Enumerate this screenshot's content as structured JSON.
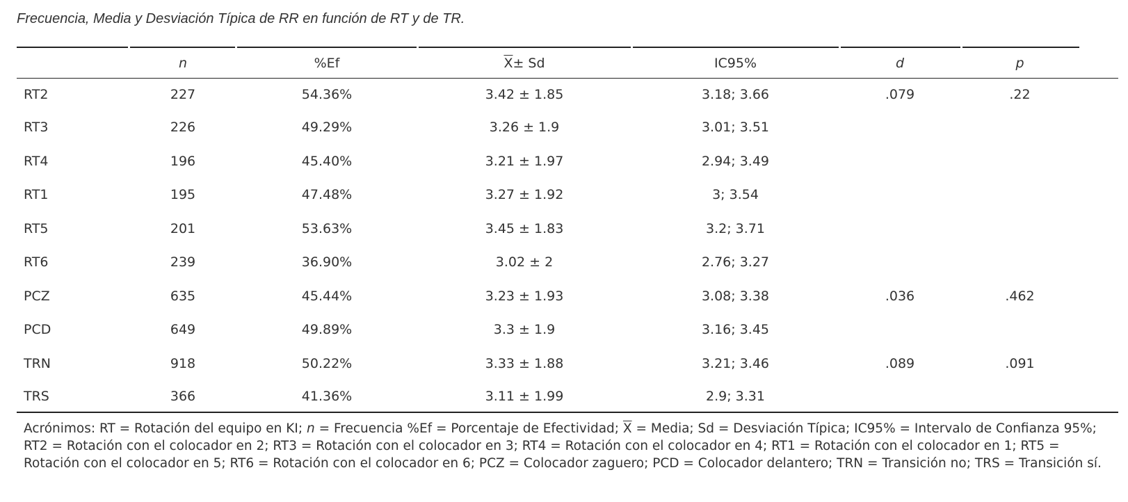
{
  "caption": "Frecuencia, Media y Desviación Típica de RR en función de RT y de TR.",
  "table": {
    "headers": {
      "row_label": "",
      "n": "n",
      "ef": "%Ef",
      "mean_sd_symbol": "X",
      "mean_sd_rest": "± Sd",
      "ic95": "IC95%",
      "d": "d",
      "p": "p"
    },
    "rows": [
      {
        "label": "RT2",
        "n": "227",
        "ef": "54.36%",
        "mean_sd": "3.42 ± 1.85",
        "ic95": "3.18; 3.66",
        "d": ".079",
        "p": ".22"
      },
      {
        "label": "RT3",
        "n": "226",
        "ef": "49.29%",
        "mean_sd": "3.26 ± 1.9",
        "ic95": "3.01; 3.51",
        "d": "",
        "p": ""
      },
      {
        "label": "RT4",
        "n": "196",
        "ef": "45.40%",
        "mean_sd": "3.21 ± 1.97",
        "ic95": "2.94; 3.49",
        "d": "",
        "p": ""
      },
      {
        "label": "RT1",
        "n": "195",
        "ef": "47.48%",
        "mean_sd": "3.27 ± 1.92",
        "ic95": "3; 3.54",
        "d": "",
        "p": ""
      },
      {
        "label": "RT5",
        "n": "201",
        "ef": "53.63%",
        "mean_sd": "3.45 ± 1.83",
        "ic95": "3.2; 3.71",
        "d": "",
        "p": ""
      },
      {
        "label": "RT6",
        "n": "239",
        "ef": "36.90%",
        "mean_sd": "3.02 ± 2",
        "ic95": "2.76; 3.27",
        "d": "",
        "p": ""
      },
      {
        "label": "PCZ",
        "n": "635",
        "ef": "45.44%",
        "mean_sd": "3.23 ± 1.93",
        "ic95": "3.08; 3.38",
        "d": ".036",
        "p": ".462"
      },
      {
        "label": "PCD",
        "n": "649",
        "ef": "49.89%",
        "mean_sd": "3.3 ± 1.9",
        "ic95": "3.16; 3.45",
        "d": "",
        "p": ""
      },
      {
        "label": "TRN",
        "n": "918",
        "ef": "50.22%",
        "mean_sd": "3.33 ± 1.88",
        "ic95": "3.21; 3.46",
        "d": ".089",
        "p": ".091"
      },
      {
        "label": "TRS",
        "n": "366",
        "ef": "41.36%",
        "mean_sd": "3.11 ± 1.99",
        "ic95": "2.9; 3.31",
        "d": "",
        "p": ""
      }
    ]
  },
  "note": {
    "part1": "Acrónimos: RT = Rotación del equipo en KI; ",
    "n_italic": "n",
    "part2": " = Frecuencia %Ef = Porcentaje de Efectividad; ",
    "xbar": "X",
    "part3": " = Media; Sd = Desviación Típica; IC95% = Intervalo de Confianza 95%; RT2 = Rotación con el colocador en 2; RT3 = Rotación con el colocador en 3; RT4 = Rotación con el colocador en 4; RT1 = Rotación con el colocador en 1; RT5 = Rotación con el colocador en 5; RT6 = Rotación con el colocador en 6; PCZ = Colocador zaguero; PCD = Colocador delantero; TRN = Transición no; TRS = Transición sí."
  }
}
